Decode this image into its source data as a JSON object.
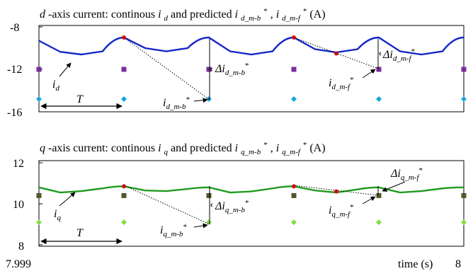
{
  "chart_data": [
    {
      "type": "line",
      "title_parts": {
        "a1": "d",
        "a2": "-axis current: continous ",
        "a3": "i",
        "a4": "d",
        "a5": " and predicted ",
        "a6": "i",
        "a7": "d_m-b",
        "a8": "*",
        "a9": " , ",
        "a10": "i",
        "a11": "d_m-f",
        "a12": "*",
        "a13": "(A)"
      },
      "yticks": [
        "-8",
        "-12",
        "-16"
      ],
      "ylim": [
        -16,
        -8
      ],
      "x_period": [
        0,
        1,
        2,
        3,
        4,
        5
      ],
      "series": [
        {
          "color": "#1428c8",
          "x": [
            0,
            0.25,
            0.5,
            0.75,
            1,
            1.25,
            1.5,
            1.75,
            2,
            2.25,
            2.5,
            2.75,
            3,
            3.25,
            3.5,
            3.75,
            4,
            4.25,
            4.5,
            4.75,
            5
          ],
          "y": [
            -9.3,
            -10.35,
            -10.6,
            -10.3,
            -9.0,
            -10.0,
            -10.3,
            -10.0,
            -9.0,
            -10.3,
            -10.6,
            -10.3,
            -9.0,
            -10.1,
            -10.4,
            -10.1,
            -9.0,
            -10.3,
            -10.6,
            -10.3,
            -9.0
          ]
        }
      ],
      "markers": {
        "purple_squares": {
          "color": "#7b2c9c",
          "x": [
            0,
            1,
            2,
            3,
            4,
            5
          ],
          "y": [
            -12,
            -12,
            -12,
            -12,
            -12,
            -12
          ]
        },
        "cyan_diamonds": {
          "color": "#18a6e0",
          "x": [
            0,
            1,
            2,
            3,
            4,
            5
          ],
          "y": [
            -14.8,
            -14.8,
            -14.8,
            -14.8,
            -14.8,
            -14.8
          ]
        },
        "red_dots": {
          "color": "#e01010",
          "x": [
            1,
            3,
            3.5
          ],
          "y": [
            -9.0,
            -9.0,
            -10.5
          ]
        }
      },
      "annotations": {
        "id_label": {
          "main": "i",
          "sub": "d"
        },
        "T_label": "T",
        "delta_b": {
          "main": "Δi",
          "sub": "d_m-b",
          "sup": "*"
        },
        "delta_f": {
          "main": "Δi",
          "sub": "d_m-f",
          "sup": "*"
        },
        "pred_b": {
          "main": "i",
          "sub": "d_m-b",
          "sup": "*"
        },
        "pred_f": {
          "main": "i",
          "sub": "d_m-f",
          "sup": "*"
        }
      }
    },
    {
      "type": "line",
      "title_parts": {
        "a1": "q",
        "a2": "-axis current: continous ",
        "a3": "i",
        "a4": "q",
        "a5": " and predicted ",
        "a6": "i",
        "a7": "q_m-b",
        "a8": "*",
        "a9": " , ",
        "a10": "i",
        "a11": "q_m-f",
        "a12": "*",
        "a13": "(A)"
      },
      "yticks": [
        "12",
        "10",
        "8"
      ],
      "ylim": [
        8,
        12
      ],
      "x_period": [
        0,
        1,
        2,
        3,
        4,
        5
      ],
      "series": [
        {
          "color": "#1e9a1e",
          "x": [
            0,
            0.25,
            0.5,
            0.75,
            1,
            1.25,
            1.5,
            1.75,
            2,
            2.25,
            2.5,
            2.75,
            3,
            3.25,
            3.5,
            3.75,
            4,
            4.25,
            4.5,
            4.75,
            5
          ],
          "y": [
            10.8,
            10.55,
            10.62,
            10.75,
            10.85,
            10.65,
            10.62,
            10.72,
            10.8,
            10.55,
            10.6,
            10.75,
            10.85,
            10.65,
            10.55,
            10.7,
            10.8,
            10.55,
            10.62,
            10.75,
            10.8
          ]
        }
      ],
      "markers": {
        "olive_squares": {
          "color": "#4b5a28",
          "x": [
            0,
            1,
            2,
            3,
            4,
            5
          ],
          "y": [
            10.4,
            10.4,
            10.4,
            10.4,
            10.4,
            10.4
          ]
        },
        "green_diamonds": {
          "color": "#80e040",
          "x": [
            0,
            1,
            2,
            3,
            4,
            5
          ],
          "y": [
            9.1,
            9.1,
            9.1,
            9.1,
            9.1,
            9.1
          ]
        },
        "red_dots": {
          "color": "#e01010",
          "x": [
            1,
            3,
            3.5
          ],
          "y": [
            10.85,
            10.85,
            10.6
          ]
        }
      },
      "annotations": {
        "iq_label": {
          "main": "i",
          "sub": "q"
        },
        "T_label": "T",
        "delta_b": {
          "main": "Δi",
          "sub": "q_m-b",
          "sup": "*"
        },
        "delta_f": {
          "main": "Δi",
          "sub": "q_m-f",
          "sup": "*"
        },
        "pred_b": {
          "main": "i",
          "sub": "q_m-b",
          "sup": "*"
        },
        "pred_f": {
          "main": "i",
          "sub": "q_m-f",
          "sup": "*"
        }
      }
    }
  ],
  "xaxis": {
    "start": "7.999",
    "end": "8",
    "label": "time (s)"
  }
}
